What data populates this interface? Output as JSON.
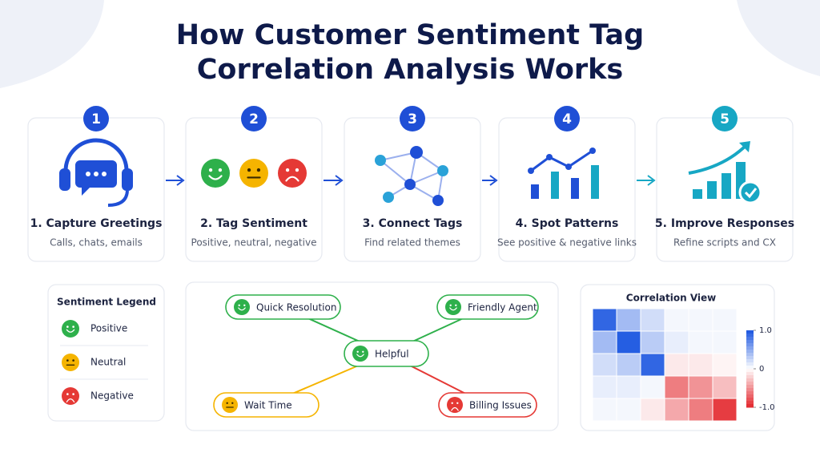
{
  "title": [
    "How Customer Sentiment Tag",
    "Correlation Analysis Works"
  ],
  "steps": [
    {
      "number": 1,
      "label": "1. Capture Greetings",
      "text": "Calls, chats, emails"
    },
    {
      "number": 2,
      "label": "2. Tag Sentiment",
      "text": "Positive, neutral, negative"
    },
    {
      "number": 3,
      "label": "3. Connect Tags",
      "text": "Find related themes"
    },
    {
      "number": 4,
      "label": "4. Spot Patterns",
      "text": "See positive & negative links"
    },
    {
      "number": 5,
      "label": "5. Improve Responses",
      "text": "Refine scripts and CX"
    }
  ],
  "legend": {
    "title": "Sentiment Legend",
    "items": [
      {
        "label": "Positive",
        "color": "#2eb04b"
      },
      {
        "label": "Neutral",
        "color": "#f5b400"
      },
      {
        "label": "Negative",
        "color": "#e53935"
      }
    ]
  },
  "network": {
    "center": {
      "label": "Helpful",
      "color": "#2eb04b"
    },
    "nodes": [
      {
        "label": "Quick Resolution",
        "color": "#2eb04b"
      },
      {
        "label": "Friendly Agent",
        "color": "#2eb04b"
      },
      {
        "label": "Wait Time",
        "color": "#f5b400"
      },
      {
        "label": "Billing Issues",
        "color": "#e53935"
      }
    ]
  },
  "correlation": {
    "title": "Correlation View",
    "values": [
      [
        0.9,
        0.4,
        0.2,
        0.05,
        0.05,
        0.05
      ],
      [
        0.4,
        0.95,
        0.3,
        0.1,
        0.05,
        0.05
      ],
      [
        0.2,
        0.3,
        0.9,
        -0.1,
        -0.1,
        -0.05
      ],
      [
        0.1,
        0.1,
        0.05,
        -0.6,
        -0.5,
        -0.3
      ],
      [
        0.05,
        0.05,
        -0.1,
        -0.4,
        -0.6,
        -0.9
      ]
    ],
    "clim": [
      -1,
      1
    ],
    "ticks": [
      {
        "value": 1,
        "label": "1.0"
      },
      0,
      {
        "value": -1,
        "label": "-1.0"
      }
    ]
  }
}
